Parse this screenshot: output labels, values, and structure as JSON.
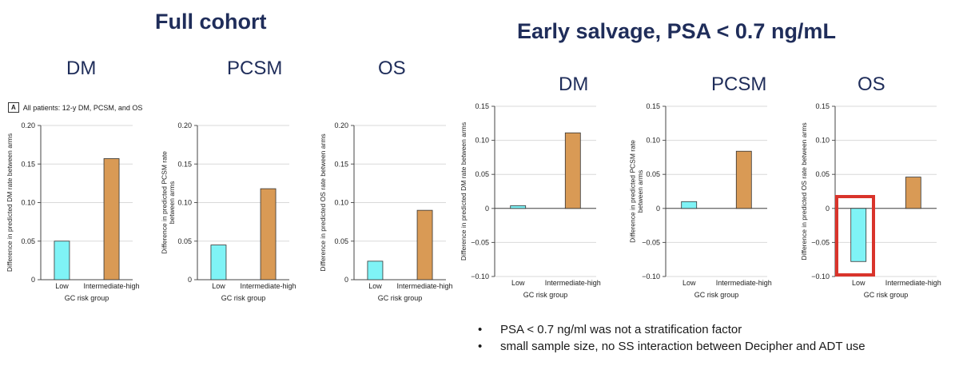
{
  "titles": {
    "full_cohort": "Full cohort",
    "early_salvage": "Early salvage, PSA < 0.7 ng/mL"
  },
  "panel_label": {
    "tag": "A",
    "text": "All patients: 12-y DM, PCSM, and OS"
  },
  "colors": {
    "low": "#7ff3f6",
    "intermediate_high": "#d99a55",
    "highlight": "#d9342b",
    "title": "#1f2d5a"
  },
  "chart_data": [
    {
      "type": "bar",
      "group": "Full cohort",
      "heading": "DM",
      "categories": [
        "Low",
        "Intermediate-high"
      ],
      "values": [
        0.05,
        0.157
      ],
      "xlabel": "GC risk group",
      "ylabel": "Difference in predicted DM rate between arms",
      "ylim": [
        0,
        0.2
      ],
      "yticks": [
        "0",
        "0.05",
        "0.10",
        "0.15",
        "0.20"
      ],
      "grid": true
    },
    {
      "type": "bar",
      "group": "Full cohort",
      "heading": "PCSM",
      "categories": [
        "Low",
        "Intermediate-high"
      ],
      "values": [
        0.045,
        0.118
      ],
      "xlabel": "GC risk group",
      "ylabel": "Difference in predicted PCSM rate between arms",
      "ylim": [
        0,
        0.2
      ],
      "yticks": [
        "0",
        "0.05",
        "0.10",
        "0.15",
        "0.20"
      ],
      "grid": true
    },
    {
      "type": "bar",
      "group": "Full cohort",
      "heading": "OS",
      "categories": [
        "Low",
        "Intermediate-high"
      ],
      "values": [
        0.024,
        0.09
      ],
      "xlabel": "GC risk group",
      "ylabel": "Difference in predicted OS rate between arms",
      "ylim": [
        0,
        0.2
      ],
      "yticks": [
        "0",
        "0.05",
        "0.10",
        "0.15",
        "0.20"
      ],
      "grid": true
    },
    {
      "type": "bar",
      "group": "Early salvage, PSA < 0.7 ng/mL",
      "heading": "DM",
      "categories": [
        "Low",
        "Intermediate-high"
      ],
      "values": [
        0.004,
        0.111
      ],
      "xlabel": "GC risk group",
      "ylabel": "Difference in predicted DM rate between arms",
      "ylim": [
        -0.1,
        0.15
      ],
      "yticks": [
        "−0.10",
        "−0.05",
        "0",
        "0.05",
        "0.10",
        "0.15"
      ],
      "grid": true
    },
    {
      "type": "bar",
      "group": "Early salvage, PSA < 0.7 ng/mL",
      "heading": "PCSM",
      "categories": [
        "Low",
        "Intermediate-high"
      ],
      "values": [
        0.01,
        0.084
      ],
      "xlabel": "GC risk group",
      "ylabel": "Difference in predicted PCSM rate between arms",
      "ylim": [
        -0.1,
        0.15
      ],
      "yticks": [
        "−0.10",
        "−0.05",
        "0",
        "0.05",
        "0.10",
        "0.15"
      ],
      "grid": true
    },
    {
      "type": "bar",
      "group": "Early salvage, PSA < 0.7 ng/mL",
      "heading": "OS",
      "categories": [
        "Low",
        "Intermediate-high"
      ],
      "values": [
        -0.078,
        0.046
      ],
      "xlabel": "GC risk group",
      "ylabel": "Difference in predicted OS rate between arms",
      "ylim": [
        -0.1,
        0.15
      ],
      "yticks": [
        "−0.10",
        "−0.05",
        "0",
        "0.05",
        "0.10",
        "0.15"
      ],
      "grid": true
    }
  ],
  "bullets": [
    "PSA < 0.7 ng/ml was not a stratification factor",
    "small sample size, no SS interaction between Decipher and ADT use"
  ]
}
